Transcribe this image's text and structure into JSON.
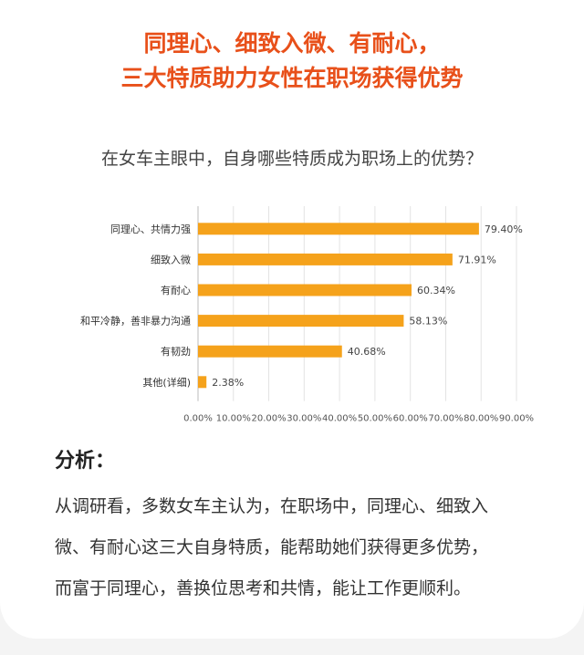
{
  "header": {
    "title_line1": "同理心、细致入微、有耐心，",
    "title_line2": "三大特质助力女性在职场获得优势"
  },
  "question": "在女车主眼中，自身哪些特质成为职场上的优势？",
  "colors": {
    "headline": "#e8501a",
    "bar": "#f5a21b"
  },
  "chart_data": {
    "type": "bar",
    "orientation": "horizontal",
    "title": "",
    "xlabel": "",
    "ylabel": "",
    "categories": [
      "同理心、共情力强",
      "细致入微",
      "有耐心",
      "和平冷静，善非暴力沟通",
      "有韧劲",
      "其他(详细)"
    ],
    "values": [
      79.4,
      71.91,
      60.34,
      58.13,
      40.68,
      2.38
    ],
    "value_labels": [
      "79.40%",
      "71.91%",
      "60.34%",
      "58.13%",
      "40.68%",
      "2.38%"
    ],
    "xlim": [
      0,
      90
    ],
    "x_ticks": [
      "0.00%",
      "10.00%",
      "20.00%",
      "30.00%",
      "40.00%",
      "50.00%",
      "60.00%",
      "70.00%",
      "80.00%",
      "90.00%"
    ],
    "grid": true
  },
  "analysis": {
    "title": "分析：",
    "lines": [
      "从调研看，多数女车主认为，在职场中，同理心、细致入",
      "微、有耐心这三大自身特质，能帮助她们获得更多优势，",
      "而富于同理心，善换位思考和共情，能让工作更顺利。"
    ]
  }
}
